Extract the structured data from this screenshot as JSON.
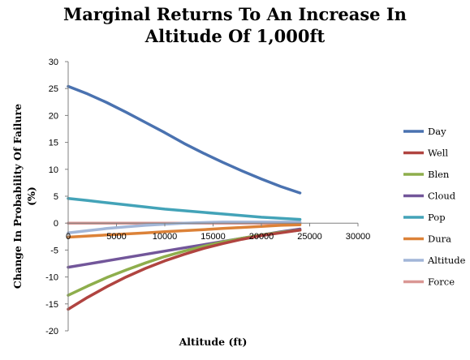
{
  "chart_data": {
    "type": "line",
    "title_line1": "Marginal Returns To An Increase In",
    "title_line2": "Altitude Of 1,000ft",
    "xlabel": "Altitude (ft)",
    "ylabel": "Change In Probability Of Failure (%)",
    "xlim": [
      0,
      30000
    ],
    "ylim": [
      -20,
      30
    ],
    "x_ticks": [
      0,
      5000,
      10000,
      15000,
      20000,
      25000,
      30000
    ],
    "y_ticks": [
      30,
      25,
      20,
      15,
      10,
      5,
      0,
      -5,
      -10,
      -15,
      -20
    ],
    "grid": false,
    "legend_position": "right",
    "x": [
      0,
      2000,
      4000,
      6000,
      8000,
      10000,
      12000,
      14000,
      16000,
      18000,
      20000,
      22000,
      24000
    ],
    "series": [
      {
        "name": "Day",
        "color": "#4a72b0",
        "values": [
          25.4,
          24.0,
          22.4,
          20.6,
          18.7,
          16.8,
          14.8,
          13.0,
          11.3,
          9.7,
          8.2,
          6.8,
          5.6
        ]
      },
      {
        "name": "Well",
        "color": "#b04440",
        "values": [
          -16.0,
          -13.8,
          -11.8,
          -10.0,
          -8.4,
          -7.0,
          -5.8,
          -4.7,
          -3.8,
          -3.0,
          -2.3,
          -1.8,
          -1.3
        ]
      },
      {
        "name": "Blen",
        "color": "#8eae4c",
        "values": [
          -13.4,
          -11.7,
          -10.1,
          -8.7,
          -7.4,
          -6.2,
          -5.2,
          -4.3,
          -3.5,
          -2.8,
          -2.2,
          -1.7,
          -1.3
        ]
      },
      {
        "name": "Cloud",
        "color": "#72569a",
        "values": [
          -8.2,
          -7.6,
          -7.0,
          -6.4,
          -5.8,
          -5.2,
          -4.6,
          -4.0,
          -3.4,
          -2.8,
          -2.2,
          -1.6,
          -1.1
        ]
      },
      {
        "name": "Pop",
        "color": "#43a3b8",
        "values": [
          4.6,
          4.2,
          3.8,
          3.4,
          3.0,
          2.6,
          2.3,
          2.0,
          1.7,
          1.4,
          1.1,
          0.9,
          0.7
        ]
      },
      {
        "name": "Dura",
        "color": "#dc8238",
        "values": [
          -2.6,
          -2.4,
          -2.2,
          -2.0,
          -1.8,
          -1.6,
          -1.4,
          -1.2,
          -1.0,
          -0.8,
          -0.6,
          -0.4,
          -0.3
        ]
      },
      {
        "name": "Altitude",
        "color": "#a2b6d8",
        "values": [
          -1.8,
          -1.4,
          -1.0,
          -0.7,
          -0.4,
          -0.2,
          0.0,
          0.1,
          0.2,
          0.2,
          0.2,
          0.2,
          0.2
        ]
      },
      {
        "name": "Force",
        "color": "#da9794",
        "values": [
          0.0,
          0.0,
          0.0,
          0.0,
          0.0,
          0.0,
          0.0,
          0.0,
          0.0,
          0.0,
          0.0,
          0.0,
          0.0
        ]
      }
    ]
  }
}
